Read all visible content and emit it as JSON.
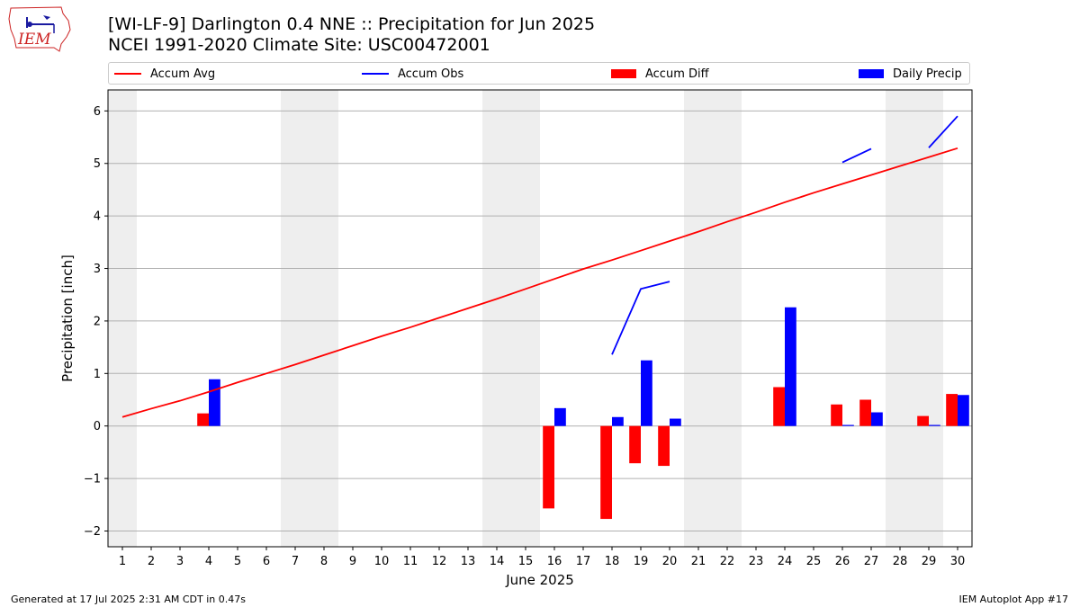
{
  "header": {
    "title_line1": "[WI-LF-9] Darlington 0.4 NNE :: Precipitation for Jun 2025",
    "title_line2": "NCEI 1991-2020 Climate Site: USC00472001"
  },
  "logo": {
    "text": "IEM",
    "color": "#cc2222",
    "icon": "iowa-weather-station-logo"
  },
  "legend": [
    {
      "label": "Accum Avg",
      "kind": "line",
      "color": "#ff0000"
    },
    {
      "label": "Accum Obs",
      "kind": "line",
      "color": "#0000ff"
    },
    {
      "label": "Accum Diff",
      "kind": "box",
      "color": "#ff0000"
    },
    {
      "label": "Daily Precip",
      "kind": "box",
      "color": "#0000ff"
    }
  ],
  "footer": {
    "left": "Generated at 17 Jul 2025 2:31 AM CDT in 0.47s",
    "right": "IEM Autoplot App #17"
  },
  "chart_data": {
    "type": "bar",
    "xlabel": "June 2025",
    "ylabel": "Precipitation [inch]",
    "xlim": [
      0.5,
      30.5
    ],
    "ylim": [
      -2.3,
      6.4
    ],
    "yticks": [
      -2,
      -1,
      0,
      1,
      2,
      3,
      4,
      5,
      6
    ],
    "ytick_labels": [
      "−2",
      "−1",
      "0",
      "1",
      "2",
      "3",
      "4",
      "5",
      "6"
    ],
    "xticks": [
      1,
      2,
      3,
      4,
      5,
      6,
      7,
      8,
      9,
      10,
      11,
      12,
      13,
      14,
      15,
      16,
      17,
      18,
      19,
      20,
      21,
      22,
      23,
      24,
      25,
      26,
      27,
      28,
      29,
      30
    ],
    "xtick_labels": [
      "1",
      "2",
      "3",
      "4",
      "5",
      "6",
      "7",
      "8",
      "9",
      "10",
      "11",
      "12",
      "13",
      "14",
      "15",
      "16",
      "17",
      "18",
      "19",
      "20",
      "21",
      "22",
      "23",
      "24",
      "25",
      "26",
      "27",
      "28",
      "29",
      "30"
    ],
    "grid": "horizontal",
    "weekend_shading": [
      [
        0.5,
        1.5
      ],
      [
        6.5,
        8.5
      ],
      [
        13.5,
        15.5
      ],
      [
        20.5,
        22.5
      ],
      [
        27.5,
        29.5
      ]
    ],
    "shade_color": "#eeeeee",
    "series": [
      {
        "name": "Accum Avg",
        "kind": "line",
        "color": "#ff0000",
        "x": [
          1,
          2,
          3,
          4,
          5,
          6,
          7,
          8,
          9,
          10,
          11,
          12,
          13,
          14,
          15,
          16,
          17,
          18,
          19,
          20,
          21,
          22,
          23,
          24,
          25,
          26,
          27,
          28,
          29,
          30
        ],
        "values": [
          0.17,
          0.33,
          0.48,
          0.65,
          0.83,
          1.0,
          1.17,
          1.35,
          1.53,
          1.71,
          1.88,
          2.06,
          2.24,
          2.42,
          2.61,
          2.8,
          2.99,
          3.16,
          3.34,
          3.52,
          3.7,
          3.89,
          4.07,
          4.26,
          4.44,
          4.61,
          4.78,
          4.95,
          5.12,
          5.29
        ]
      },
      {
        "name": "Accum Obs",
        "kind": "line",
        "color": "#0000ff",
        "segments": [
          {
            "x": [
              18,
              19,
              20
            ],
            "values": [
              1.36,
              2.61,
              2.75
            ]
          },
          {
            "x": [
              26,
              27
            ],
            "values": [
              5.02,
              5.28
            ]
          },
          {
            "x": [
              29,
              30
            ],
            "values": [
              5.3,
              5.9
            ]
          }
        ]
      },
      {
        "name": "Accum Diff",
        "kind": "bar",
        "color": "#ff0000",
        "x": [
          4,
          16,
          18,
          19,
          20,
          24,
          26,
          27,
          29,
          30
        ],
        "values": [
          0.24,
          -1.57,
          -1.77,
          -0.71,
          -0.76,
          0.74,
          0.41,
          0.5,
          0.19,
          0.61
        ]
      },
      {
        "name": "Daily Precip",
        "kind": "bar",
        "color": "#0000ff",
        "x": [
          4,
          16,
          18,
          19,
          20,
          24,
          26,
          27,
          29,
          30
        ],
        "values": [
          0.89,
          0.34,
          0.17,
          1.25,
          0.14,
          2.26,
          0.02,
          0.26,
          0.02,
          0.59
        ]
      }
    ]
  }
}
